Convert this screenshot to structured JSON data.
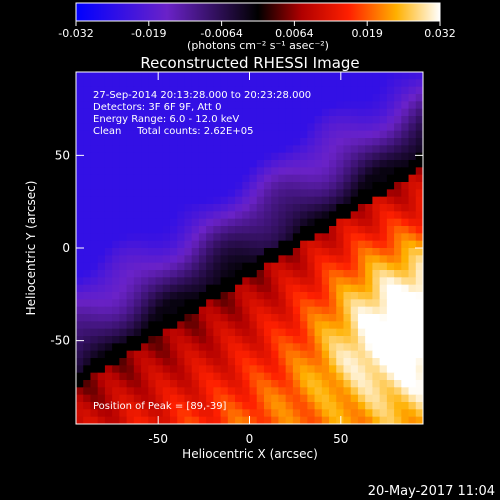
{
  "colorbar": {
    "tick_labels": [
      "-0.032",
      "-0.019",
      "-0.0064",
      "0.0064",
      "0.019",
      "0.032"
    ],
    "range": [
      -0.032,
      0.032
    ],
    "units_label": "(photons cm⁻² s⁻¹ asec⁻²)"
  },
  "chart_data": {
    "type": "heatmap",
    "title": "Reconstructed RHESSI Image",
    "xlabel": "Heliocentric X (arcsec)",
    "ylabel": "Heliocentric Y (arcsec)",
    "xlim": [
      -95,
      95
    ],
    "ylim": [
      -95,
      95
    ],
    "xticks": [
      "-50",
      "0",
      "50"
    ],
    "yticks": [
      "50",
      "0",
      "-50"
    ],
    "xtick_values": [
      -50,
      0,
      50
    ],
    "ytick_values": [
      50,
      0,
      -50
    ],
    "colormap": "blue-purple-black-red-yellow-white",
    "peak": [
      89,
      -39
    ],
    "annotations": [
      "27-Sep-2014 20:13:28.000 to 20:23:28.000",
      "Detectors: 3F 6F 9F, Att 0",
      "Energy Range: 6.0 - 12.0 keV",
      "Clean     Total counts: 2.62E+05"
    ],
    "peak_label": "Position of Peak = [89,-39]"
  },
  "footer": {
    "date": "20-May-2017 11:04"
  },
  "colors": {
    "background": "#000000",
    "text": "#ffffff"
  }
}
